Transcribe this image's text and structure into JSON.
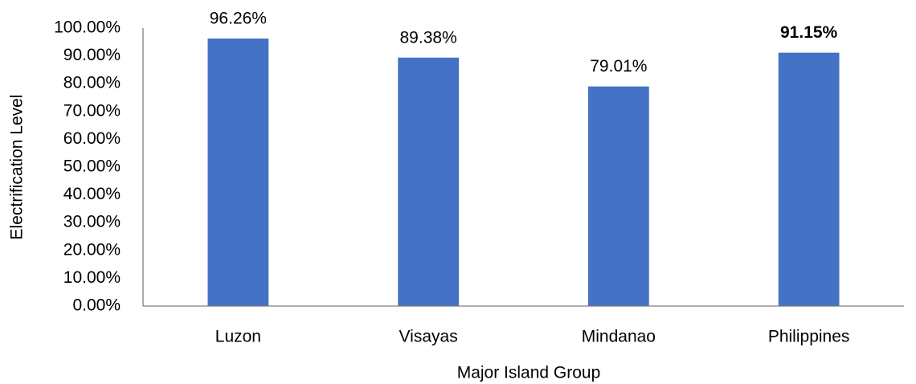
{
  "chart_data": {
    "type": "bar",
    "x_label": "Major Island Group",
    "y_label": "Electrification Level",
    "categories": [
      "Luzon",
      "Visayas",
      "Mindanao",
      "Philippines"
    ],
    "values": [
      96.26,
      89.38,
      79.01,
      91.15
    ],
    "value_labels": [
      "96.26%",
      "89.38%",
      "79.01%",
      "91.15%"
    ],
    "value_label_bold": [
      false,
      false,
      false,
      true
    ],
    "color": "#4472c4",
    "ylim": [
      0,
      100
    ],
    "yticks": [
      {
        "value": 0,
        "label": "0.00%"
      },
      {
        "value": 10,
        "label": "10.00%"
      },
      {
        "value": 20,
        "label": "20.00%"
      },
      {
        "value": 30,
        "label": "30.00%"
      },
      {
        "value": 40,
        "label": "40.00%"
      },
      {
        "value": 50,
        "label": "50.00%"
      },
      {
        "value": 60,
        "label": "60.00%"
      },
      {
        "value": 70,
        "label": "70.00%"
      },
      {
        "value": 80,
        "label": "80.00%"
      },
      {
        "value": 90,
        "label": "90.00%"
      },
      {
        "value": 100,
        "label": "100.00%"
      }
    ],
    "grid": false
  }
}
